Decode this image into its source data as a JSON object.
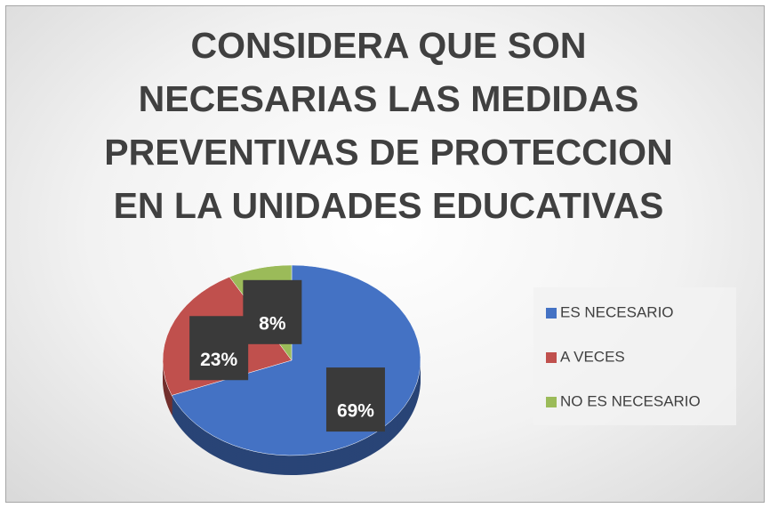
{
  "chart_data": {
    "type": "pie",
    "title": "CONSIDERA QUE SON NECESARIAS LAS MEDIDAS PREVENTIVAS DE PROTECCION EN LA UNIDADES EDUCATIVAS",
    "categories": [
      "ES NECESARIO",
      "A VECES",
      "NO ES NECESARIO"
    ],
    "values": [
      69,
      23,
      8
    ],
    "value_labels": [
      "69%",
      "23%",
      "8%"
    ],
    "colors": [
      "#4472c4",
      "#c0504d",
      "#9bbb59"
    ],
    "legend": "right"
  }
}
